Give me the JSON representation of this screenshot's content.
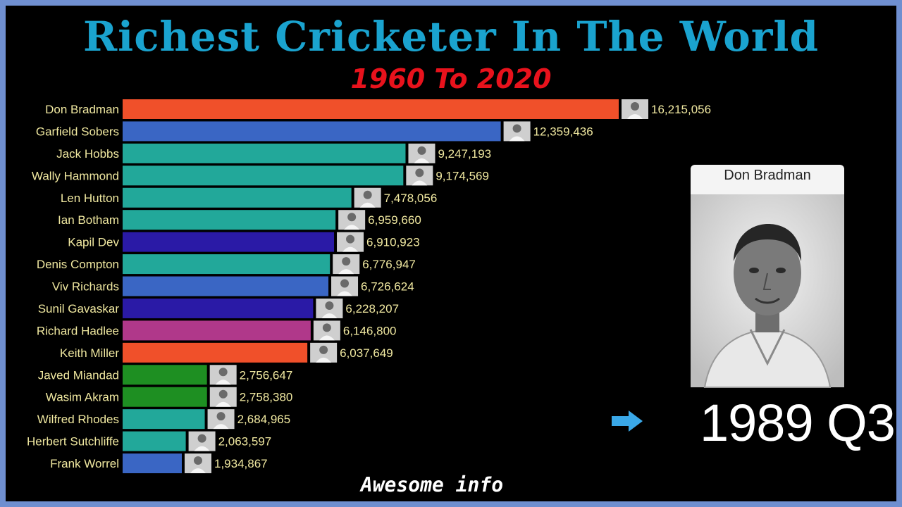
{
  "header": {
    "title": "Richest Cricketer In The World",
    "subtitle": "1960 To 2020"
  },
  "highlight": {
    "name": "Don Bradman",
    "period": "1989 Q3"
  },
  "footer": {
    "text": "Awesome info"
  },
  "chart_data": {
    "type": "bar",
    "orientation": "horizontal",
    "categories": [
      "Don Bradman",
      "Garfield Sobers",
      "Jack Hobbs",
      "Wally Hammond",
      "Len Hutton",
      "Ian Botham",
      "Kapil Dev",
      "Denis Compton",
      "Viv Richards",
      "Sunil Gavaskar",
      "Richard Hadlee",
      "Keith Miller",
      "Javed Miandad",
      "Wasim Akram",
      "Wilfred Rhodes",
      "Herbert Sutchliffe",
      "Frank Worrel"
    ],
    "values": [
      16215056,
      12359436,
      9247193,
      9174569,
      7478056,
      6959660,
      6910923,
      6776947,
      6726624,
      6228207,
      6146800,
      6037649,
      2756647,
      2758380,
      2684965,
      2063597,
      1934867
    ],
    "value_labels": [
      "16,215,056",
      "12,359,436",
      "9,247,193",
      "9,174,569",
      "7,478,056",
      "6,959,660",
      "6,910,923",
      "6,776,947",
      "6,726,624",
      "6,228,207",
      "6,146,800",
      "6,037,649",
      "2,756,647",
      "2,758,380",
      "2,684,965",
      "2,063,597",
      "1,934,867"
    ],
    "colors": [
      "#f0502a",
      "#3a66c4",
      "#22a89a",
      "#22a89a",
      "#22a89a",
      "#22a89a",
      "#2a1aa6",
      "#22a89a",
      "#3a66c4",
      "#2a1aa6",
      "#b0388a",
      "#f0502a",
      "#1e8f22",
      "#1e8f22",
      "#22a89a",
      "#22a89a",
      "#3a66c4"
    ],
    "xlim": [
      0,
      16215056
    ],
    "grid": false,
    "legend": "none"
  }
}
